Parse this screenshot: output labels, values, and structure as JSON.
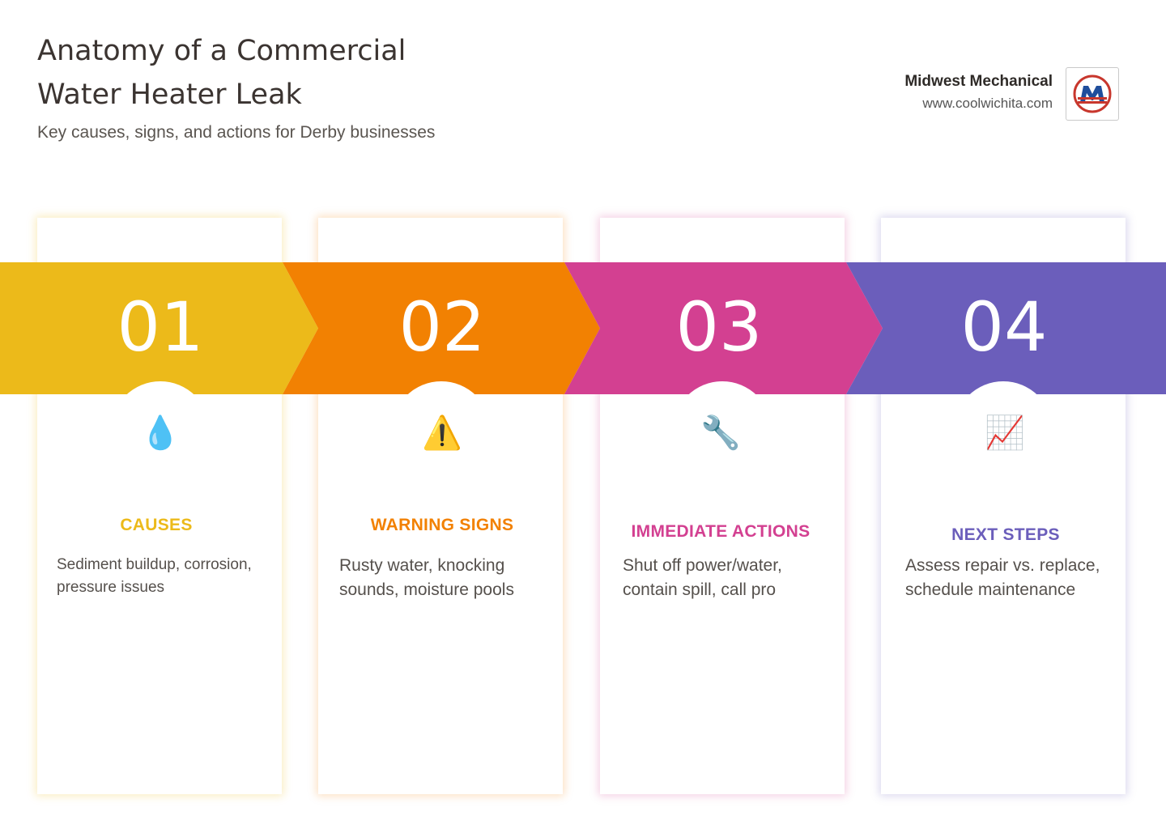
{
  "header": {
    "title_line1": "Anatomy of a Commercial",
    "title_line2": "Water Heater Leak",
    "subtitle": "Key causes, signs, and actions for Derby businesses"
  },
  "brand": {
    "name": "Midwest Mechanical",
    "url": "www.coolwichita.com"
  },
  "steps": [
    {
      "number": "01",
      "heading": "CAUSES",
      "description": "Sediment buildup, corrosion, pressure issues",
      "icon": "droplet-icon",
      "glyph": "💧",
      "color": "#ecba1a"
    },
    {
      "number": "02",
      "heading": "WARNING SIGNS",
      "description": "Rusty water, knocking sounds, moisture pools",
      "icon": "warning-icon",
      "glyph": "⚠️",
      "color": "#f28102"
    },
    {
      "number": "03",
      "heading": "IMMEDIATE ACTIONS",
      "description": "Shut off power/water, contain spill, call pro",
      "icon": "wrench-icon",
      "glyph": "🔧",
      "color": "#d34091"
    },
    {
      "number": "04",
      "heading": "NEXT STEPS",
      "description": "Assess repair vs. replace, schedule maintenance",
      "icon": "chart-increasing-icon",
      "glyph": "📈",
      "color": "#6b5ebb"
    }
  ]
}
